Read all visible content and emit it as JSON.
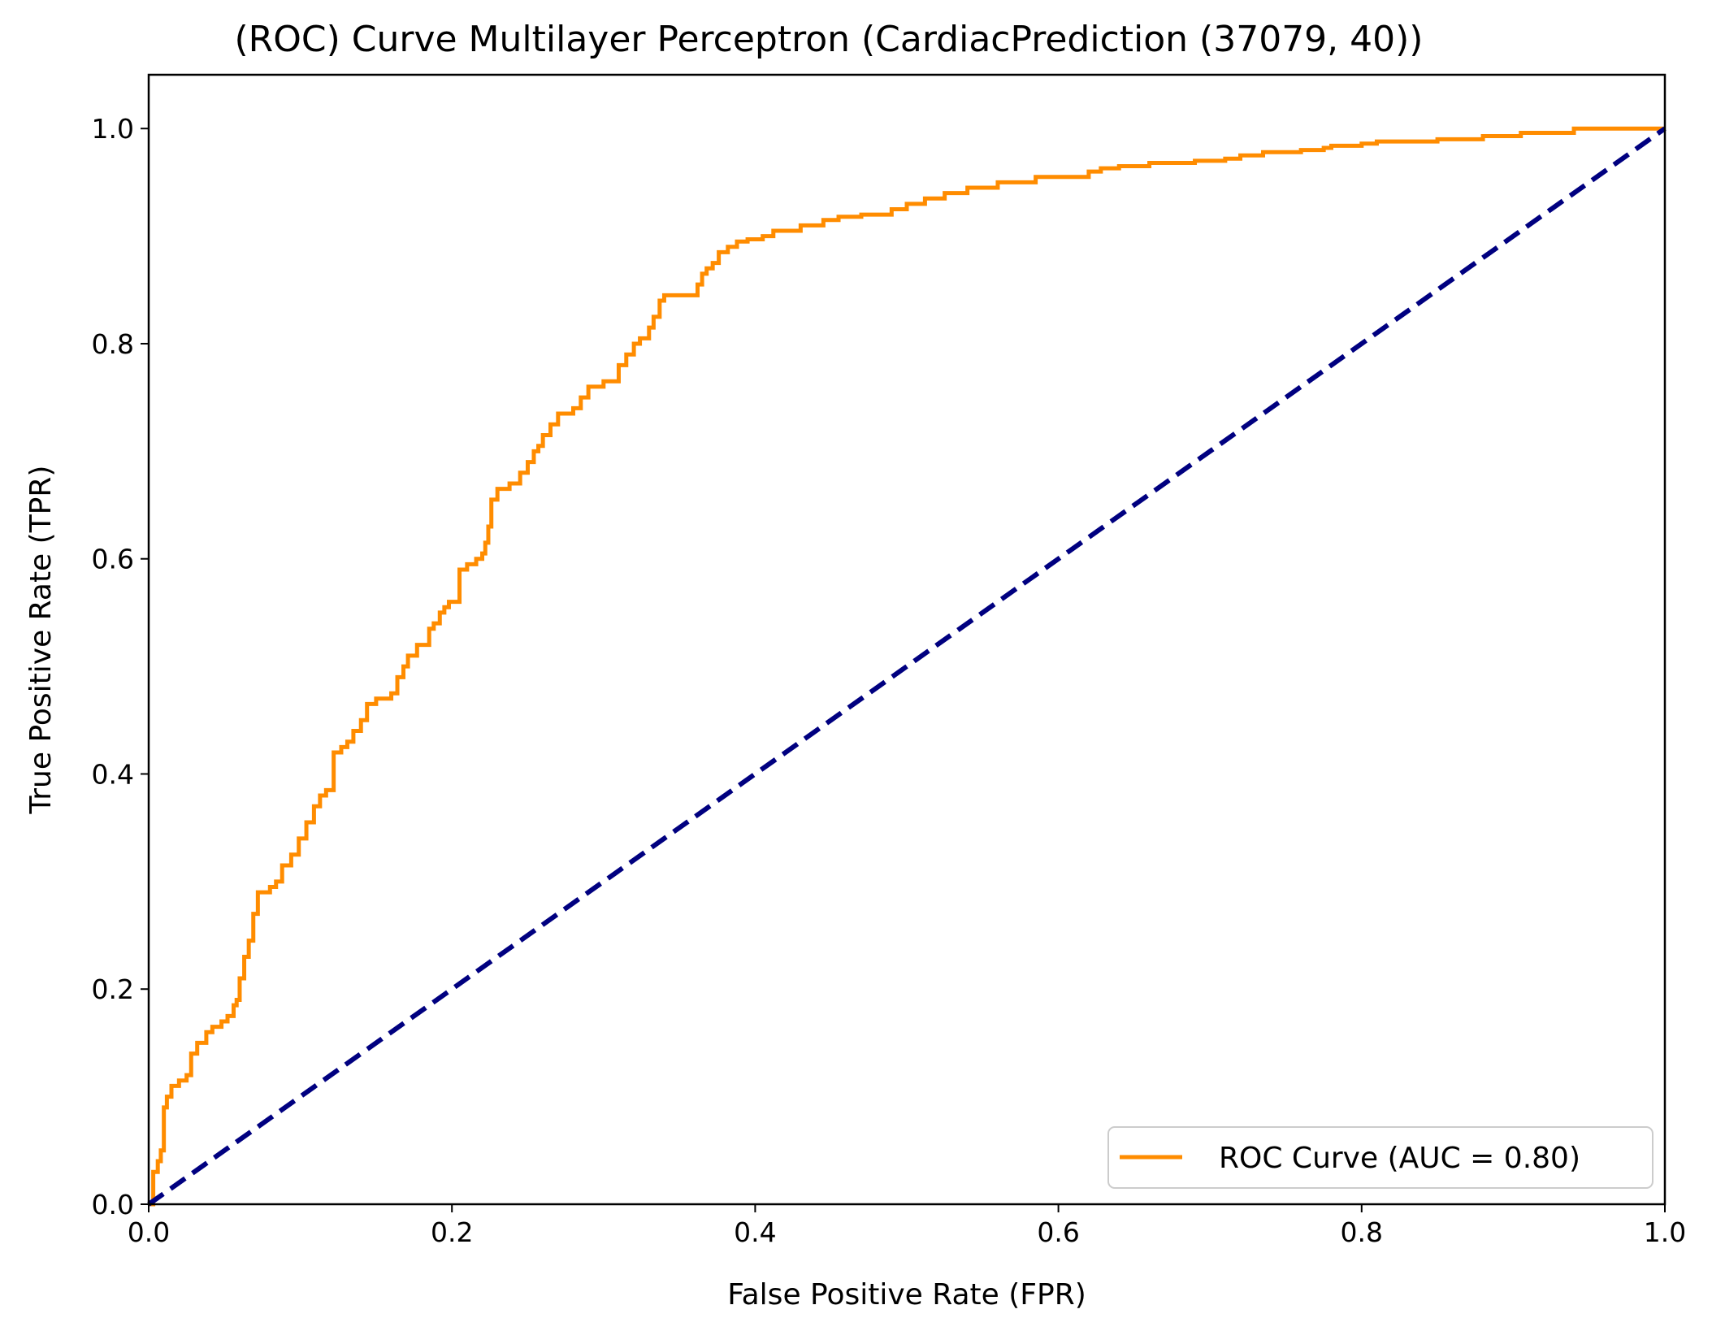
{
  "chart_data": {
    "type": "line",
    "title": "(ROC) Curve Multilayer Perceptron (CardiacPrediction (37079, 40))",
    "xlabel": "False Positive Rate (FPR)",
    "ylabel": "True Positive Rate (TPR)",
    "xlim": [
      0.0,
      1.0
    ],
    "ylim": [
      0.0,
      1.05
    ],
    "xticks": [
      "0.0",
      "0.2",
      "0.4",
      "0.6",
      "0.8",
      "1.0"
    ],
    "yticks": [
      "0.0",
      "0.2",
      "0.4",
      "0.6",
      "0.8",
      "1.0"
    ],
    "grid": false,
    "legend_position": "lower-right",
    "series": [
      {
        "name": "ROC Curve (AUC = 0.80)",
        "color": "#ff8c00",
        "style": "solid",
        "step": true,
        "x": [
          0.0,
          0.003,
          0.006,
          0.008,
          0.01,
          0.012,
          0.015,
          0.02,
          0.025,
          0.028,
          0.032,
          0.038,
          0.042,
          0.048,
          0.052,
          0.056,
          0.058,
          0.06,
          0.063,
          0.066,
          0.069,
          0.072,
          0.08,
          0.084,
          0.088,
          0.094,
          0.099,
          0.104,
          0.109,
          0.113,
          0.117,
          0.122,
          0.127,
          0.131,
          0.135,
          0.14,
          0.144,
          0.15,
          0.16,
          0.164,
          0.168,
          0.171,
          0.177,
          0.185,
          0.188,
          0.192,
          0.195,
          0.198,
          0.205,
          0.21,
          0.216,
          0.22,
          0.222,
          0.224,
          0.226,
          0.23,
          0.238,
          0.245,
          0.25,
          0.254,
          0.257,
          0.26,
          0.265,
          0.27,
          0.28,
          0.285,
          0.29,
          0.3,
          0.31,
          0.315,
          0.32,
          0.324,
          0.33,
          0.333,
          0.337,
          0.34,
          0.362,
          0.365,
          0.368,
          0.372,
          0.376,
          0.382,
          0.388,
          0.395,
          0.405,
          0.412,
          0.43,
          0.445,
          0.455,
          0.47,
          0.49,
          0.5,
          0.512,
          0.525,
          0.54,
          0.56,
          0.585,
          0.62,
          0.628,
          0.64,
          0.66,
          0.69,
          0.71,
          0.72,
          0.735,
          0.76,
          0.775,
          0.78,
          0.8,
          0.81,
          0.85,
          0.88,
          0.905,
          0.94,
          1.0
        ],
        "y": [
          0.0,
          0.03,
          0.04,
          0.05,
          0.09,
          0.1,
          0.11,
          0.115,
          0.12,
          0.14,
          0.15,
          0.16,
          0.165,
          0.17,
          0.175,
          0.185,
          0.19,
          0.21,
          0.23,
          0.245,
          0.27,
          0.29,
          0.295,
          0.3,
          0.315,
          0.325,
          0.34,
          0.355,
          0.37,
          0.38,
          0.385,
          0.42,
          0.425,
          0.43,
          0.44,
          0.45,
          0.465,
          0.47,
          0.475,
          0.49,
          0.5,
          0.51,
          0.52,
          0.535,
          0.54,
          0.55,
          0.555,
          0.56,
          0.59,
          0.595,
          0.6,
          0.605,
          0.615,
          0.63,
          0.655,
          0.665,
          0.67,
          0.68,
          0.69,
          0.7,
          0.705,
          0.715,
          0.725,
          0.735,
          0.74,
          0.75,
          0.76,
          0.765,
          0.78,
          0.79,
          0.8,
          0.805,
          0.815,
          0.825,
          0.84,
          0.845,
          0.855,
          0.865,
          0.87,
          0.875,
          0.885,
          0.89,
          0.895,
          0.897,
          0.9,
          0.905,
          0.91,
          0.915,
          0.918,
          0.92,
          0.925,
          0.93,
          0.935,
          0.94,
          0.945,
          0.95,
          0.955,
          0.96,
          0.963,
          0.965,
          0.968,
          0.97,
          0.972,
          0.975,
          0.978,
          0.98,
          0.982,
          0.984,
          0.986,
          0.988,
          0.99,
          0.993,
          0.996,
          1.0,
          1.0
        ]
      },
      {
        "name": "",
        "color": "#000080",
        "style": "dashed",
        "step": false,
        "x": [
          0.0,
          1.0
        ],
        "y": [
          0.0,
          1.0
        ]
      }
    ]
  }
}
